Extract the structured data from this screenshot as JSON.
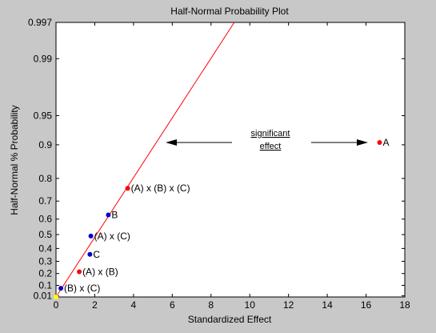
{
  "chart_data": {
    "type": "scatter",
    "title": "Half-Normal Probability Plot",
    "xlabel": "Standardized Effect",
    "ylabel": "Half-Normal % Probability",
    "xlim": [
      0,
      18
    ],
    "x_ticks": [
      "0",
      "2",
      "4",
      "6",
      "8",
      "10",
      "12",
      "14",
      "16",
      "18"
    ],
    "y_scale": "half-normal probability",
    "y_ticks": [
      "0.01",
      "0.1",
      "0.2",
      "0.3",
      "0.4",
      "0.5",
      "0.6",
      "0.7",
      "0.8",
      "0.9",
      "0.95",
      "0.99",
      "0.997"
    ],
    "grid": false,
    "points": [
      {
        "label": "A",
        "x": 16.7,
        "y": 0.905,
        "color": "#ff0000"
      },
      {
        "label": "(A) x (B) x (C)",
        "x": 3.7,
        "y": 0.76,
        "color": "#ff0000"
      },
      {
        "label": "B",
        "x": 2.7,
        "y": 0.625,
        "color": "#0000cc"
      },
      {
        "label": "(A) x (C)",
        "x": 1.8,
        "y": 0.49,
        "color": "#0000cc"
      },
      {
        "label": "C",
        "x": 1.75,
        "y": 0.355,
        "color": "#0000cc"
      },
      {
        "label": "(A) x (B)",
        "x": 1.2,
        "y": 0.215,
        "color": "#ff0000"
      },
      {
        "label": "(B) x (C)",
        "x": 0.25,
        "y": 0.075,
        "color": "#0000cc"
      }
    ],
    "reference_line": {
      "color": "#ff0000",
      "from": {
        "x": 0,
        "y": 0
      },
      "to": {
        "x": 9.2,
        "y": 0.997
      }
    },
    "annotation": {
      "line1": "significant",
      "line2": "effect"
    }
  }
}
